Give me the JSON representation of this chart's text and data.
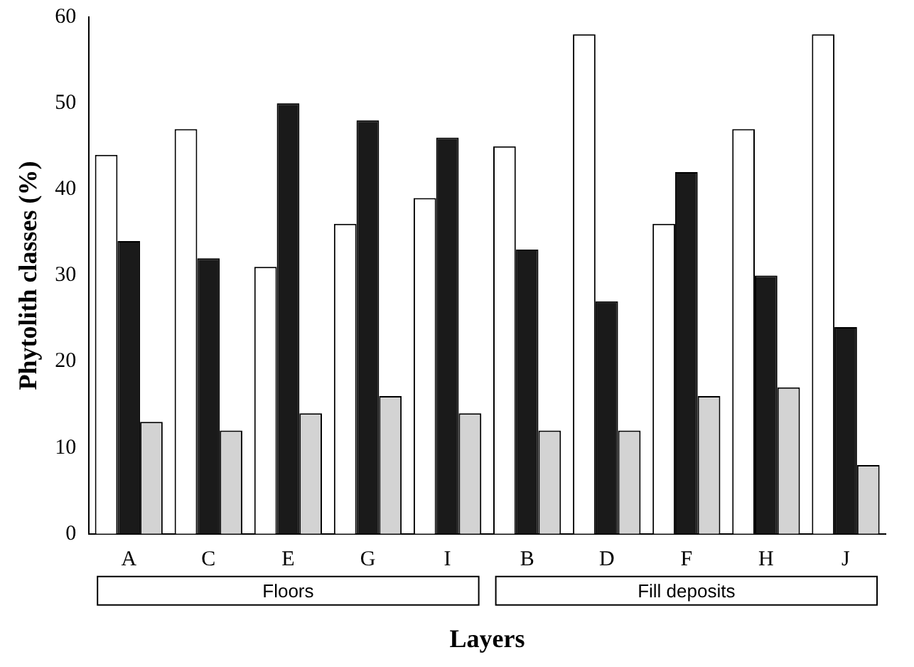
{
  "chart_data": {
    "type": "bar",
    "xlabel": "Layers",
    "ylabel": "Phytolith classes (%)",
    "categories": [
      "A",
      "C",
      "E",
      "G",
      "I",
      "B",
      "D",
      "F",
      "H",
      "J"
    ],
    "series": [
      {
        "color": "#ffffff",
        "values": [
          44,
          47,
          31,
          36,
          39,
          45,
          58,
          36,
          47,
          58
        ]
      },
      {
        "color": "#1a1a1a",
        "values": [
          34,
          32,
          50,
          48,
          46,
          33,
          27,
          42,
          30,
          24
        ]
      },
      {
        "color": "#d3d3d3",
        "values": [
          13,
          12,
          14,
          16,
          14,
          12,
          12,
          16,
          17,
          8
        ]
      }
    ],
    "ylim": [
      0,
      60
    ],
    "yticks": [
      0,
      10,
      20,
      30,
      40,
      50,
      60
    ],
    "grid": false,
    "legend": false,
    "annotations": [
      "Floors",
      "Fill deposits"
    ]
  }
}
